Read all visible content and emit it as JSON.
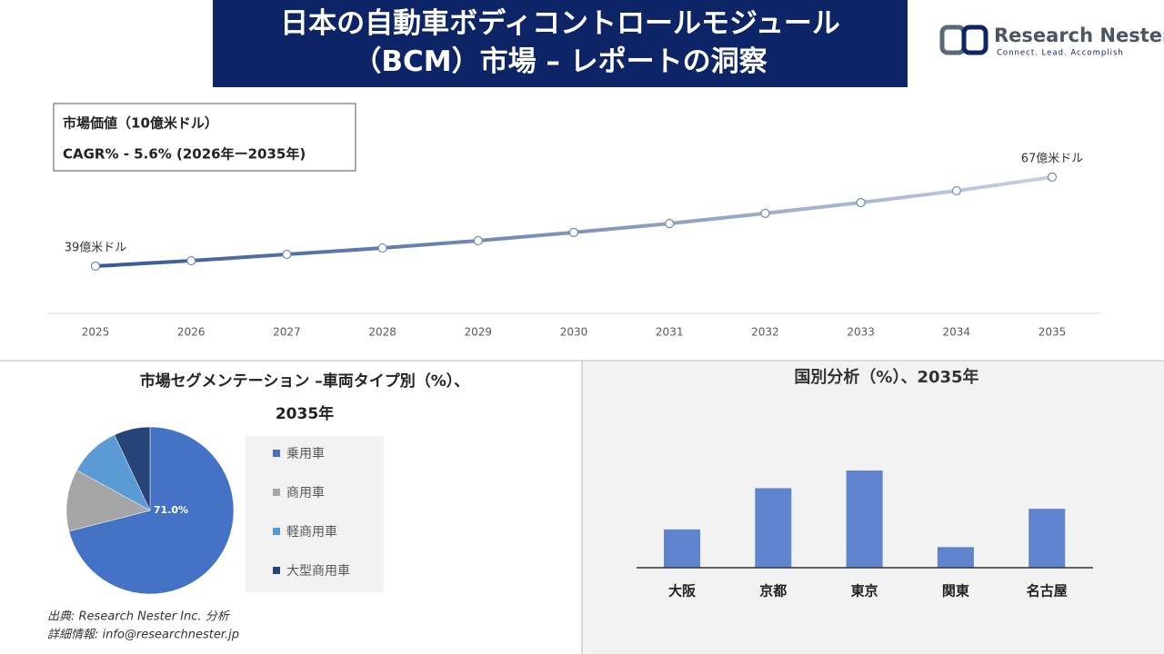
{
  "header": {
    "title_line1": "日本の自動車ボディコントロールモジュール",
    "title_line2": "（BCM）市場 – レポートの洞察"
  },
  "logo": {
    "name": "Research Nester",
    "tagline": "Connect. Lead. Accomplish"
  },
  "chart_data": [
    {
      "type": "line",
      "info": [
        "市場価値（10億米ドル）",
        "CAGR% - 5.6% (2026年ー2035年)"
      ],
      "categories": [
        "2025",
        "2026",
        "2027",
        "2028",
        "2029",
        "2030",
        "2031",
        "2032",
        "2033",
        "2034",
        "2035"
      ],
      "values": [
        39,
        40.7,
        42.7,
        44.7,
        47,
        49.6,
        52.4,
        55.6,
        59,
        62.7,
        67
      ],
      "value_labels": [
        "39億米ドル",
        null,
        null,
        null,
        null,
        null,
        null,
        null,
        null,
        null,
        "67億米ドル"
      ],
      "colors": [
        "#34589a",
        "#c8d0e2"
      ]
    },
    {
      "type": "pie",
      "title": "市場セグメンテーション –車両タイプ別（%）、",
      "subtitle": "2035年",
      "categories": [
        "乗用車",
        "商用車",
        "軽商用車",
        "大型商用車"
      ],
      "values": [
        71.0,
        12,
        10,
        7
      ],
      "value_labels": [
        "71.0%",
        null,
        null,
        null
      ],
      "colors": [
        "#4472c4",
        "#a5a5a5",
        "#5b9bd5",
        "#264478"
      ]
    },
    {
      "type": "bar",
      "title": "国別分析（%）、2035年",
      "categories": [
        "大阪",
        "京都",
        "東京",
        "関東",
        "名古屋"
      ],
      "values": [
        13,
        27,
        33,
        7,
        20
      ],
      "color": "#5f83cd"
    }
  ],
  "footer": {
    "source": "出典: Research Nester Inc. 分析",
    "contact": "詳細情報: info@researchnester.jp"
  }
}
